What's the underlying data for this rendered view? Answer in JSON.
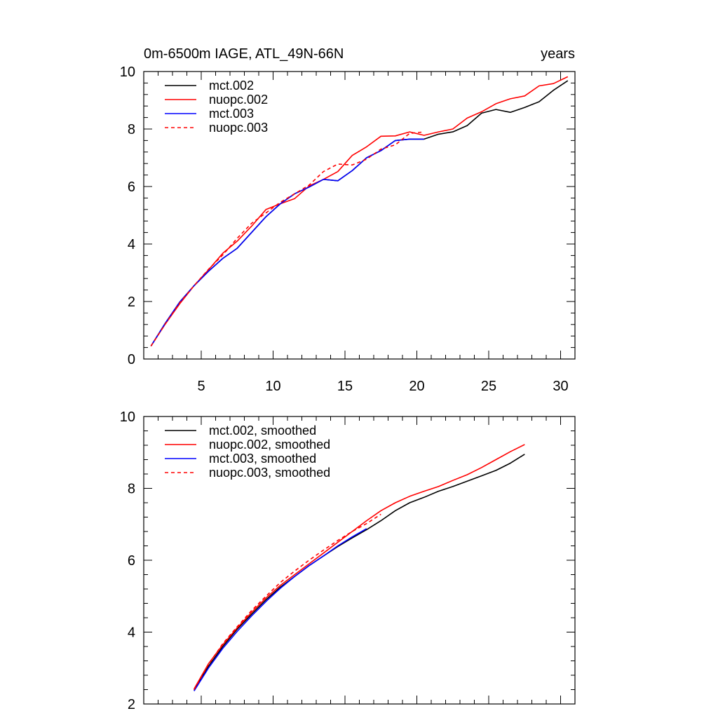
{
  "chart_data": [
    {
      "type": "line",
      "title": "0m-6500m IAGE, ATL_49N-66N",
      "units": "years",
      "xlim": [
        1,
        31
      ],
      "ylim": [
        0,
        10
      ],
      "x_ticks": [
        5,
        10,
        15,
        20,
        25,
        30
      ],
      "y_ticks": [
        0,
        2,
        4,
        6,
        8,
        10
      ],
      "x_tick_labels": [
        "5",
        "10",
        "15",
        "20",
        "25",
        "30"
      ],
      "y_tick_labels": [
        "0",
        "2",
        "4",
        "6",
        "8",
        "10"
      ],
      "legend_position": "top-left",
      "series": [
        {
          "name": "mct.002",
          "color": "#000000",
          "dash": "solid",
          "x": [
            1.5,
            2.5,
            3.5,
            4.5,
            5.5,
            6.5,
            7.5,
            8.5,
            9.5,
            10.5,
            11.5,
            12.5,
            13.5,
            14.5,
            15.5,
            16.5,
            17.5,
            18.5,
            19.5,
            20.5,
            21.5,
            22.5,
            23.5,
            24.5,
            25.5,
            26.5,
            27.5,
            28.5,
            29.5,
            30.5
          ],
          "values": [
            0.45,
            1.25,
            1.98,
            2.55,
            3.05,
            3.5,
            3.85,
            4.4,
            4.95,
            5.4,
            5.75,
            5.98,
            6.25,
            6.2,
            6.55,
            7.0,
            7.25,
            7.6,
            7.65,
            7.65,
            7.82,
            7.9,
            8.12,
            8.55,
            8.68,
            8.58,
            8.75,
            8.95,
            9.35,
            9.68
          ]
        },
        {
          "name": "nuopc.002",
          "color": "#ff0000",
          "dash": "solid",
          "x": [
            1.5,
            2.5,
            3.5,
            4.5,
            5.5,
            6.5,
            7.5,
            8.5,
            9.5,
            10.5,
            11.5,
            12.5,
            13.5,
            14.5,
            15.5,
            16.5,
            17.5,
            18.5,
            19.5,
            20.5,
            21.5,
            22.5,
            23.5,
            24.5,
            25.5,
            26.5,
            27.5,
            28.5,
            29.5,
            30.5
          ],
          "values": [
            0.45,
            1.22,
            1.92,
            2.55,
            3.1,
            3.68,
            4.1,
            4.62,
            5.2,
            5.4,
            5.58,
            6.02,
            6.25,
            6.52,
            7.08,
            7.38,
            7.75,
            7.76,
            7.9,
            7.78,
            7.9,
            8.0,
            8.38,
            8.6,
            8.88,
            9.05,
            9.15,
            9.5,
            9.58,
            9.82
          ]
        },
        {
          "name": "mct.003",
          "color": "#0000ff",
          "dash": "solid",
          "x": [
            1.5,
            2.5,
            3.5,
            4.5,
            5.5,
            6.5,
            7.5,
            8.5,
            9.5,
            10.5,
            11.5,
            12.5,
            13.5,
            14.5,
            15.5,
            16.5,
            17.5,
            18.5,
            19.5,
            20.5
          ],
          "values": [
            0.45,
            1.25,
            1.98,
            2.55,
            3.05,
            3.5,
            3.85,
            4.4,
            4.95,
            5.4,
            5.75,
            5.98,
            6.25,
            6.2,
            6.55,
            7.0,
            7.25,
            7.6,
            7.65,
            7.65
          ]
        },
        {
          "name": "nuopc.003",
          "color": "#ff0000",
          "dash": "dashed",
          "x": [
            1.5,
            2.5,
            3.5,
            4.5,
            5.5,
            6.5,
            7.5,
            8.5,
            9.5,
            10.5,
            11.5,
            12.5,
            13.5,
            14.5,
            15.5,
            16.5,
            17.5,
            18.5,
            19.5,
            20.5
          ],
          "values": [
            0.45,
            1.22,
            1.95,
            2.55,
            3.12,
            3.62,
            4.2,
            4.72,
            5.08,
            5.45,
            5.75,
            6.05,
            6.52,
            6.78,
            6.75,
            6.95,
            7.3,
            7.45,
            7.85,
            7.9
          ]
        }
      ]
    },
    {
      "type": "line",
      "xlim": [
        1,
        31
      ],
      "ylim": [
        2,
        10
      ],
      "x_ticks": [
        5,
        10,
        15,
        20,
        25,
        30
      ],
      "y_ticks": [
        2,
        4,
        6,
        8,
        10
      ],
      "y_tick_labels": [
        "2",
        "4",
        "6",
        "8",
        "10"
      ],
      "legend_position": "top-left",
      "series": [
        {
          "name": "mct.002, smoothed",
          "color": "#000000",
          "dash": "solid",
          "x": [
            4.5,
            5.5,
            6.5,
            7.5,
            8.5,
            9.5,
            10.5,
            11.5,
            12.5,
            13.5,
            14.5,
            15.5,
            16.5,
            17.5,
            18.5,
            19.5,
            20.5,
            21.5,
            22.5,
            23.5,
            24.5,
            25.5,
            26.5,
            27.5
          ],
          "values": [
            2.38,
            3.05,
            3.6,
            4.08,
            4.5,
            4.9,
            5.25,
            5.55,
            5.85,
            6.12,
            6.38,
            6.62,
            6.85,
            7.1,
            7.38,
            7.6,
            7.75,
            7.92,
            8.05,
            8.2,
            8.35,
            8.5,
            8.7,
            8.95
          ]
        },
        {
          "name": "nuopc.002, smoothed",
          "color": "#ff0000",
          "dash": "solid",
          "x": [
            4.5,
            5.5,
            6.5,
            7.5,
            8.5,
            9.5,
            10.5,
            11.5,
            12.5,
            13.5,
            14.5,
            15.5,
            16.5,
            17.5,
            18.5,
            19.5,
            20.5,
            21.5,
            22.5,
            23.5,
            24.5,
            25.5,
            26.5,
            27.5
          ],
          "values": [
            2.42,
            3.12,
            3.65,
            4.12,
            4.55,
            4.95,
            5.3,
            5.6,
            5.9,
            6.2,
            6.5,
            6.8,
            7.1,
            7.38,
            7.6,
            7.78,
            7.92,
            8.05,
            8.22,
            8.38,
            8.58,
            8.8,
            9.02,
            9.22
          ]
        },
        {
          "name": "mct.003, smoothed",
          "color": "#0000ff",
          "dash": "solid",
          "x": [
            4.5,
            5.5,
            6.5,
            7.5,
            8.5,
            9.5,
            10.5,
            11.5,
            12.5,
            13.5,
            14.5,
            15.5,
            16.5
          ],
          "values": [
            2.36,
            3.0,
            3.55,
            4.02,
            4.45,
            4.85,
            5.22,
            5.55,
            5.85,
            6.12,
            6.4,
            6.65,
            6.88
          ]
        },
        {
          "name": "nuopc.003, smoothed",
          "color": "#ff0000",
          "dash": "dashed",
          "x": [
            4.5,
            5.5,
            6.5,
            7.5,
            8.5,
            9.5,
            10.5,
            11.5,
            12.5,
            13.5,
            14.5,
            15.5,
            16.5,
            17.5
          ],
          "values": [
            2.4,
            3.1,
            3.68,
            4.15,
            4.6,
            5.0,
            5.38,
            5.7,
            6.0,
            6.28,
            6.55,
            6.8,
            7.02,
            7.28
          ]
        }
      ]
    }
  ]
}
